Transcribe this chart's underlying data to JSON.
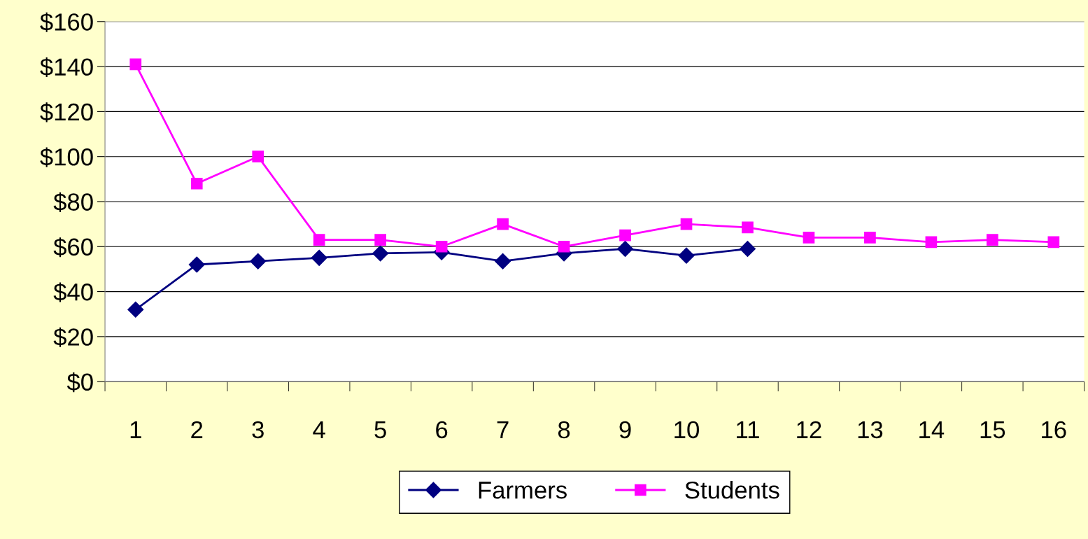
{
  "chart_data": {
    "type": "line",
    "categories": [
      "1",
      "2",
      "3",
      "4",
      "5",
      "6",
      "7",
      "8",
      "9",
      "10",
      "11",
      "12",
      "13",
      "14",
      "15",
      "16"
    ],
    "series": [
      {
        "name": "Farmers",
        "color": "#000080",
        "marker": "diamond",
        "values": [
          32,
          52,
          53.5,
          55,
          57,
          57.5,
          53.5,
          57,
          59,
          56,
          59,
          null,
          null,
          null,
          null,
          null
        ]
      },
      {
        "name": "Students",
        "color": "#ff00ff",
        "marker": "square",
        "values": [
          141,
          88,
          100,
          63,
          63,
          60,
          70,
          60,
          65,
          70,
          68.5,
          64,
          64,
          62,
          63,
          62
        ]
      }
    ],
    "ylim": [
      0,
      160
    ],
    "yticks": [
      {
        "value": 0,
        "label": "$0"
      },
      {
        "value": 20,
        "label": "$20"
      },
      {
        "value": 40,
        "label": "$40"
      },
      {
        "value": 60,
        "label": "$60"
      },
      {
        "value": 80,
        "label": "$80"
      },
      {
        "value": 100,
        "label": "$100"
      },
      {
        "value": 120,
        "label": "$120"
      },
      {
        "value": 140,
        "label": "$140"
      },
      {
        "value": 160,
        "label": "$160"
      }
    ],
    "grid": "y",
    "legend": "bottom",
    "line_style": "solid"
  }
}
